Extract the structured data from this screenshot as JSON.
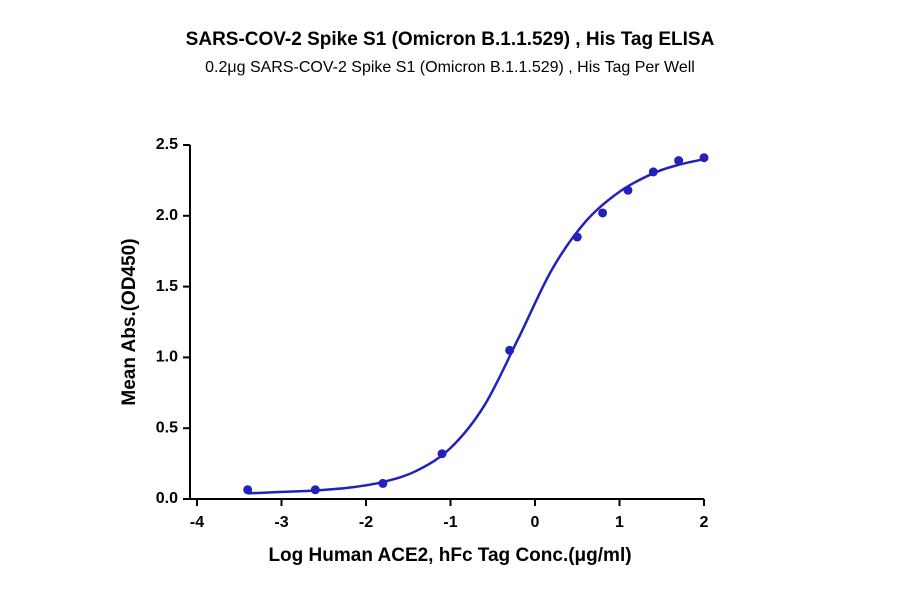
{
  "chart_data": {
    "type": "scatter",
    "title": "SARS-COV-2 Spike S1 (Omicron B.1.1.529) , His Tag ELISA",
    "subtitle": "0.2μg SARS-COV-2 Spike S1 (Omicron B.1.1.529) , His Tag Per Well",
    "x_label": "Log Human ACE2, hFc Tag Conc.(μg/ml)",
    "y_label": "Mean Abs.(OD450)",
    "xlim": [
      -4,
      2
    ],
    "xticks": [
      -4,
      -3,
      -2,
      -1,
      0,
      1,
      2
    ],
    "ylim": [
      0,
      2.5
    ],
    "yticks": [
      {
        "value": 0,
        "label": "0.0"
      },
      0.5,
      {
        "value": 1,
        "label": "1.0"
      },
      1.5,
      {
        "value": 2,
        "label": "2.0"
      },
      2.5
    ],
    "series": [
      {
        "mode": "markers",
        "color": "#2222b8",
        "x": [
          -3.4,
          -2.6,
          -1.8,
          -1.1,
          -0.3,
          0.5,
          0.8,
          1.1,
          1.4,
          1.7,
          2.0
        ],
        "values": [
          0.065,
          0.065,
          0.11,
          0.32,
          1.05,
          1.85,
          2.02,
          2.18,
          2.31,
          2.39,
          2.41
        ]
      },
      {
        "mode": "line",
        "color": "#2222b8",
        "x": [
          -3.4,
          -3.0,
          -2.6,
          -2.2,
          -1.8,
          -1.4,
          -1.0,
          -0.6,
          -0.2,
          0.2,
          0.6,
          1.0,
          1.4,
          1.7,
          2.0
        ],
        "values": [
          0.04,
          0.05,
          0.06,
          0.08,
          0.12,
          0.2,
          0.36,
          0.66,
          1.13,
          1.62,
          1.96,
          2.17,
          2.3,
          2.36,
          2.4
        ]
      }
    ]
  }
}
